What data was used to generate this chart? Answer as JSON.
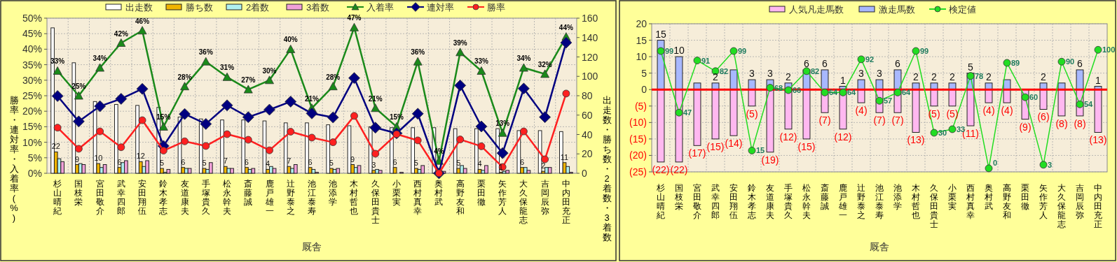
{
  "chart_data": [
    {
      "type": "bar",
      "categories": [
        "杉山晴紀",
        "国枝栄",
        "宮田敬介",
        "武幸四郎",
        "安田翔伍",
        "鈴木孝志",
        "友道康夫",
        "手塚貴久",
        "松永幹夫",
        "斎藤誠",
        "鹿戸雄一",
        "辻野泰之",
        "池江泰寿",
        "池添学",
        "木村哲也",
        "久保田貴士",
        "小栗実",
        "西村真幸",
        "奥村武",
        "高野友和",
        "栗田徹",
        "矢作芳人",
        "大久保龍志",
        "吉岡辰弥",
        "中内田充正"
      ],
      "xlabel": "厩舎",
      "ylabel": "勝率・連対率・入着率(%)",
      "y2label": "出走数・勝ち数・2着数・3着数",
      "ylim": [
        0,
        50
      ],
      "yticks": [
        {
          "value": 0,
          "label": "0%"
        },
        {
          "value": 5,
          "label": "5%"
        },
        {
          "value": 10,
          "label": "10%"
        },
        {
          "value": 15,
          "label": "15%"
        },
        {
          "value": 20,
          "label": "20%"
        },
        {
          "value": 25,
          "label": "25%"
        },
        {
          "value": 30,
          "label": "30%"
        },
        {
          "value": 35,
          "label": "35%"
        },
        {
          "value": 40,
          "label": "40%"
        },
        {
          "value": 45,
          "label": "45%"
        },
        {
          "value": 50,
          "label": "50%"
        }
      ],
      "y2lim": [
        0,
        160
      ],
      "y2ticks": [
        0,
        20,
        40,
        60,
        80,
        100,
        120,
        140,
        160
      ],
      "grid": true,
      "legend": "top",
      "series": [
        {
          "name": "出走数",
          "color": "#ffffff",
          "axis": "y2",
          "values": [
            150,
            114,
            74,
            71,
            70,
            68,
            58,
            56,
            55,
            55,
            54,
            52,
            52,
            50,
            49,
            48,
            47,
            47,
            47,
            46,
            46,
            46,
            44,
            44,
            43
          ]
        },
        {
          "name": "勝ち数",
          "color": "#f0b400",
          "axis": "y2",
          "values": [
            22,
            9,
            10,
            6,
            12,
            5,
            6,
            5,
            7,
            6,
            4,
            7,
            6,
            5,
            9,
            3,
            6,
            5,
            0,
            5,
            4,
            1,
            6,
            2,
            11
          ],
          "value_labels": [
            "22",
            "9",
            "10",
            "6",
            "12",
            "5",
            "6",
            "5",
            "7",
            "6",
            "4",
            "7",
            "6",
            "5",
            "9",
            "3",
            "6",
            "5",
            null,
            "5",
            "4",
            "1",
            "6",
            "2",
            "11"
          ]
        },
        {
          "name": "2着数",
          "color": "#b0f0f0",
          "axis": "y2",
          "values": [
            15,
            10,
            6,
            11,
            7,
            1,
            5,
            4,
            5,
            4,
            7,
            5,
            4,
            4,
            6,
            4,
            0,
            4,
            0,
            8,
            3,
            2,
            6,
            6,
            7
          ]
        },
        {
          "name": "3着数",
          "color": "#f0a0d8",
          "axis": "y2",
          "values": [
            12,
            9,
            9,
            13,
            13,
            4,
            5,
            11,
            5,
            5,
            5,
            9,
            1,
            5,
            8,
            3,
            1,
            8,
            2,
            5,
            8,
            3,
            3,
            6,
            1
          ]
        },
        {
          "name": "入着率",
          "type": "line",
          "color": "#1a8a1a",
          "marker": "triangle",
          "values": [
            33,
            25,
            34,
            42,
            46,
            15,
            28,
            36,
            31,
            27,
            30,
            40,
            21,
            28,
            47,
            21,
            15,
            36,
            4,
            39,
            33,
            13,
            34,
            32,
            44
          ],
          "value_labels": [
            "33%",
            "25%",
            "34%",
            "42%",
            "46%",
            "15%",
            "28%",
            "36%",
            "31%",
            "27%",
            "30%",
            "40%",
            "21%",
            "28%",
            "47%",
            "21%",
            "15%",
            "36%",
            "4%",
            "39%",
            "33%",
            "13%",
            "34%",
            "32%",
            "44%"
          ]
        },
        {
          "name": "連対率",
          "type": "line",
          "color": "#000080",
          "marker": "diamond",
          "values": [
            24.9,
            16.7,
            21.6,
            24.0,
            27.2,
            8.8,
            19.1,
            15.9,
            21.9,
            18.1,
            20.5,
            23.1,
            19.3,
            18.0,
            30.7,
            14.7,
            12.9,
            19.2,
            0,
            28.3,
            15.1,
            6.5,
            27.3,
            18.1,
            42.1
          ]
        },
        {
          "name": "勝率",
          "type": "line",
          "color": "#ff2020",
          "marker": "circle",
          "values": [
            14.7,
            7.9,
            13.5,
            8.4,
            17.1,
            7.3,
            10.3,
            8.8,
            12.6,
            10.8,
            7.4,
            13.4,
            11.5,
            10.0,
            18.5,
            6.3,
            12.6,
            10.6,
            0,
            10.9,
            8.7,
            2.0,
            13.5,
            4.5,
            25.7
          ]
        }
      ]
    },
    {
      "type": "bar",
      "stacked": true,
      "categories": [
        "杉山晴紀",
        "国枝栄",
        "宮田敬介",
        "武幸四郎",
        "安田翔伍",
        "鈴木孝志",
        "友道康夫",
        "手塚貴久",
        "松永幹夫",
        "斎藤誠",
        "鹿戸雄一",
        "辻野泰之",
        "池江泰寿",
        "池添学",
        "木村哲也",
        "久保田貴士",
        "小栗実",
        "西村真幸",
        "奥村武",
        "高野友和",
        "栗田徹",
        "矢作芳人",
        "大久保龍志",
        "吉岡辰弥",
        "中内田充正"
      ],
      "xlabel": "厩舎",
      "ylim": [
        -25,
        20
      ],
      "yticks": [
        {
          "value": -25,
          "label": "(25)"
        },
        {
          "value": -20,
          "label": "(20)"
        },
        {
          "value": -15,
          "label": "(15)"
        },
        {
          "value": -10,
          "label": "(10)"
        },
        {
          "value": -5,
          "label": "(5)"
        },
        0,
        5,
        10,
        15,
        20
      ],
      "y2lim": [
        -3,
        122
      ],
      "grid": true,
      "legend": "top",
      "ref_lines": [
        {
          "axis": "y",
          "value": 0,
          "color": "#ff0000"
        }
      ],
      "series": [
        {
          "name": "人気凡走馬数",
          "color": "#ffb8f0",
          "values": [
            -22,
            -22,
            -17,
            -15,
            -14,
            -5,
            -19,
            -12,
            -15,
            -7,
            -12,
            -4,
            -7,
            -7,
            -13,
            -5,
            -5,
            -11,
            -4,
            -4,
            -9,
            -6,
            -8,
            -8,
            -13
          ],
          "value_labels": [
            "(22)",
            "(22)",
            "(17)",
            "(15)",
            "(14)",
            "(5)",
            "(19)",
            "(12)",
            "(15)",
            "(7)",
            "(12)",
            "(4)",
            "(7)",
            "(7)",
            "(13)",
            "(5)",
            "(5)",
            "(11)",
            "(4)",
            "(4)",
            "(9)",
            "(6)",
            "(8)",
            "(8)",
            "(13)"
          ]
        },
        {
          "name": "激走馬数",
          "color": "#a8b8ff",
          "values": [
            15,
            10,
            2,
            2,
            6,
            3,
            3,
            2,
            6,
            6,
            1,
            3,
            3,
            6,
            2,
            2,
            2,
            5,
            2,
            3,
            0,
            2,
            2,
            6,
            1
          ],
          "value_labels": [
            "15",
            "10",
            null,
            "2",
            null,
            "3",
            "3",
            "2",
            "6",
            "6",
            "1",
            "3",
            "3",
            "6",
            "2",
            "2",
            "2",
            "5",
            "2",
            null,
            null,
            "2",
            null,
            "6",
            "1"
          ]
        },
        {
          "name": "検定値",
          "type": "line",
          "axis": "y2",
          "color": "#22dd22",
          "marker": "circle",
          "values": [
            99,
            47,
            91,
            82,
            99,
            15,
            68,
            66,
            82,
            64,
            64,
            92,
            57,
            64,
            99,
            30,
            33,
            78,
            0,
            89,
            60,
            3,
            90,
            54,
            100
          ],
          "value_labels": [
            "99",
            "47",
            "91",
            "82",
            "99",
            "15",
            "68",
            "66",
            "82",
            "64",
            "64",
            "92",
            "57",
            "64",
            "99",
            "30",
            "33",
            "78",
            "0",
            "89",
            "60",
            "3",
            "90",
            "54",
            "100"
          ]
        }
      ]
    }
  ]
}
